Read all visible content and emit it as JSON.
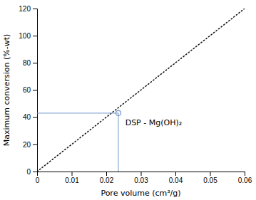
{
  "chart_data": {
    "type": "line",
    "xlabel": "Pore volume (cm³/g)",
    "ylabel": "Maximum conversion (%-wt)",
    "xlim": [
      0,
      0.06
    ],
    "ylim": [
      0,
      120
    ],
    "xticks": [
      0,
      0.01,
      0.02,
      0.03,
      0.04,
      0.05,
      0.06
    ],
    "yticks": [
      0,
      20,
      40,
      60,
      80,
      100,
      120
    ],
    "grid": false,
    "series": [
      {
        "type": "line",
        "x": [
          0,
          0.06
        ],
        "values": [
          0,
          120
        ],
        "color": "#111111",
        "line_style": "dotted"
      },
      {
        "type": "scatter",
        "x": [
          0.0235
        ],
        "values": [
          43
        ],
        "color": "#7799cc",
        "marker": "circle",
        "line_style": "crosshair"
      }
    ],
    "annotations": [
      {
        "text": "DSP - Mg(OH)₂",
        "x": 0.0255,
        "y": 38
      }
    ]
  }
}
